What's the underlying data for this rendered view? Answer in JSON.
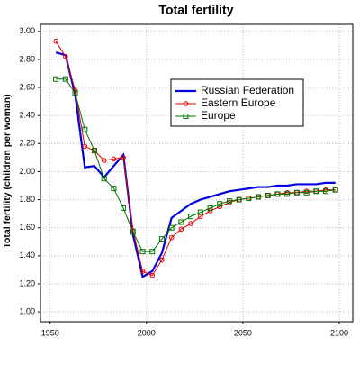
{
  "chart_data": {
    "type": "line",
    "title": "Total fertility",
    "y_label": "Total fertility (children per woman)",
    "x": [
      1953,
      1958,
      1963,
      1968,
      1973,
      1978,
      1983,
      1988,
      1993,
      1998,
      2003,
      2008,
      2013,
      2018,
      2023,
      2028,
      2033,
      2038,
      2043,
      2048,
      2053,
      2058,
      2063,
      2068,
      2073,
      2078,
      2083,
      2088,
      2093,
      2098
    ],
    "series": [
      {
        "name": "Russian Federation",
        "color": "#0000e0",
        "marker": "none",
        "values": [
          2.85,
          2.83,
          2.55,
          2.03,
          2.04,
          1.96,
          2.04,
          2.12,
          1.55,
          1.25,
          1.29,
          1.42,
          1.67,
          1.72,
          1.77,
          1.8,
          1.82,
          1.84,
          1.86,
          1.87,
          1.88,
          1.89,
          1.89,
          1.9,
          1.9,
          1.91,
          1.91,
          1.91,
          1.92,
          1.92
        ]
      },
      {
        "name": "Eastern Europe",
        "color": "#e00000",
        "marker": "circle",
        "values": [
          2.93,
          2.82,
          2.58,
          2.18,
          2.15,
          2.08,
          2.09,
          2.1,
          1.58,
          1.29,
          1.26,
          1.37,
          1.53,
          1.59,
          1.63,
          1.68,
          1.72,
          1.75,
          1.78,
          1.8,
          1.81,
          1.82,
          1.83,
          1.84,
          1.85,
          1.85,
          1.86,
          1.86,
          1.87,
          1.87
        ]
      },
      {
        "name": "Europe",
        "color": "#007000",
        "marker": "square",
        "values": [
          2.66,
          2.66,
          2.56,
          2.3,
          2.15,
          1.95,
          1.88,
          1.74,
          1.57,
          1.43,
          1.43,
          1.52,
          1.6,
          1.64,
          1.68,
          1.71,
          1.74,
          1.77,
          1.79,
          1.8,
          1.81,
          1.82,
          1.83,
          1.84,
          1.84,
          1.85,
          1.85,
          1.86,
          1.86,
          1.87
        ]
      }
    ],
    "xlim": [
      1945,
      2107
    ],
    "xticks": [
      1950,
      2000,
      2050,
      2100
    ],
    "ylim": [
      0.93,
      3.05
    ],
    "yticks": [
      {
        "value": 1,
        "label": "1.00"
      },
      {
        "value": 1.2,
        "label": "1.20"
      },
      {
        "value": 1.4,
        "label": "1.40"
      },
      {
        "value": 1.6,
        "label": "1.60"
      },
      {
        "value": 1.8,
        "label": "1.80"
      },
      {
        "value": 2,
        "label": "2.00"
      },
      {
        "value": 2.2,
        "label": "2.20"
      },
      {
        "value": 2.4,
        "label": "2.40"
      },
      {
        "value": 2.6,
        "label": "2.60"
      },
      {
        "value": 2.8,
        "label": "2.80"
      },
      {
        "value": 3,
        "label": "3.00"
      }
    ],
    "grid": true
  }
}
